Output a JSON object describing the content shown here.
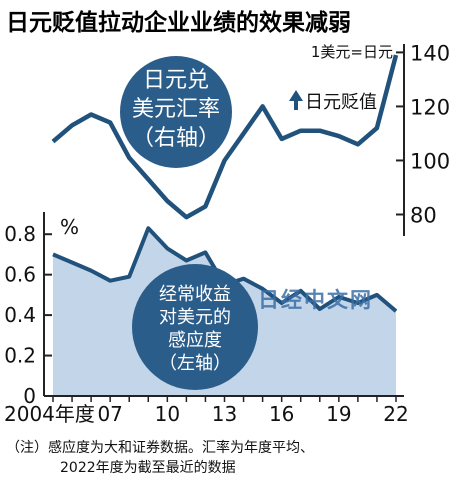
{
  "title": "日元贬值拉动企业业绩的效果减弱",
  "note_lines": [
    "（注）感应度为大和证券数据。汇率为年度平均、",
    "2022年度为截至最近的数据"
  ],
  "watermark": "日经中文网",
  "colors": {
    "line": "#21527c",
    "area_fill": "#c3d5e8",
    "bubble": "#2b5d8b",
    "axis": "#222222",
    "text": "#111111",
    "watermark": "#3a6fa6"
  },
  "chart_data": [
    {
      "type": "line",
      "name": "exchange_rate",
      "y_axis_side": "right",
      "ylim": [
        75,
        142
      ],
      "y_ticks": [
        80,
        100,
        120,
        140
      ],
      "unit_label": "1美元=日元",
      "arrow_label": "日元贬值",
      "bubble_lines": [
        "日元兑",
        "美元汇率",
        "（右轴）"
      ],
      "x": [
        2004,
        2005,
        2006,
        2007,
        2008,
        2009,
        2010,
        2011,
        2012,
        2013,
        2014,
        2015,
        2016,
        2017,
        2018,
        2019,
        2020,
        2021,
        2022
      ],
      "values": [
        107,
        113,
        117,
        114,
        101,
        93,
        85,
        79,
        83,
        100,
        110,
        120,
        108,
        111,
        111,
        109,
        106,
        112,
        139
      ]
    },
    {
      "type": "area",
      "name": "sensitivity",
      "y_axis_side": "left",
      "ylim": [
        0,
        0.9
      ],
      "y_ticks": [
        0,
        0.2,
        0.4,
        0.6,
        0.8
      ],
      "y_tick_labels": [
        "0",
        "0.2",
        "0.4",
        "0.6",
        "0.8"
      ],
      "unit_label": "%",
      "bubble_lines": [
        "经常收益",
        "对美元的",
        "感应度",
        "（左轴）"
      ],
      "x": [
        2004,
        2005,
        2006,
        2007,
        2008,
        2009,
        2010,
        2011,
        2012,
        2013,
        2014,
        2015,
        2016,
        2017,
        2018,
        2019,
        2020,
        2021,
        2022
      ],
      "values": [
        0.7,
        0.66,
        0.62,
        0.57,
        0.59,
        0.83,
        0.73,
        0.67,
        0.71,
        0.55,
        0.58,
        0.53,
        0.46,
        0.52,
        0.43,
        0.49,
        0.46,
        0.5,
        0.42
      ],
      "x_tick_labels": [
        {
          "x": 2004,
          "label": "2004年度"
        },
        {
          "x": 2007,
          "label": "07"
        },
        {
          "x": 2010,
          "label": "10"
        },
        {
          "x": 2013,
          "label": "13"
        },
        {
          "x": 2016,
          "label": "16"
        },
        {
          "x": 2019,
          "label": "19"
        },
        {
          "x": 2022,
          "label": "22"
        }
      ]
    }
  ]
}
